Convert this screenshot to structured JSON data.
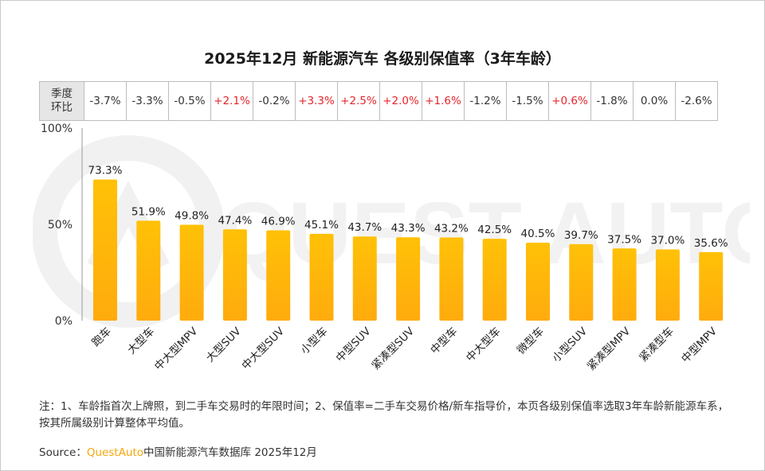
{
  "title": "2025年12月 新能源汽车 各级别保值率（3年车龄）",
  "watermark_text": "QUEST AUTO",
  "qoq": {
    "header_line1": "季度",
    "header_line2": "环比",
    "values": [
      "-3.7%",
      "-3.3%",
      "-0.5%",
      "+2.1%",
      "-0.2%",
      "+3.3%",
      "+2.5%",
      "+2.0%",
      "+1.6%",
      "-1.2%",
      "-1.5%",
      "+0.6%",
      "-1.8%",
      "0.0%",
      "-2.6%"
    ]
  },
  "chart_data": {
    "type": "bar",
    "title": "2025年12月 新能源汽车 各级别保值率（3年车龄）",
    "categories": [
      "跑车",
      "大型车",
      "中大型MPV",
      "大型SUV",
      "中大型SUV",
      "小型车",
      "中型SUV",
      "紧凑型SUV",
      "中型车",
      "中大型车",
      "微型车",
      "小型SUV",
      "紧凑型MPV",
      "紧凑型车",
      "中型MPV"
    ],
    "values": [
      73.3,
      51.9,
      49.8,
      47.4,
      46.9,
      45.1,
      43.7,
      43.3,
      43.2,
      42.5,
      40.5,
      39.7,
      37.5,
      37.0,
      35.6
    ],
    "data_labels": [
      "73.3%",
      "51.9%",
      "49.8%",
      "47.4%",
      "46.9%",
      "45.1%",
      "43.7%",
      "43.3%",
      "43.2%",
      "42.5%",
      "40.5%",
      "39.7%",
      "37.5%",
      "37.0%",
      "35.6%"
    ],
    "ylim": [
      0,
      100
    ],
    "yticks": [
      0,
      50,
      100
    ],
    "ytick_labels": [
      "0%",
      "50%",
      "100%"
    ],
    "xlabel": "",
    "ylabel": "",
    "grid": false,
    "bar_color_top": "#ffc107",
    "bar_color_bottom": "#ffab0d"
  },
  "note": "注：1、车龄指首次上牌照，到二手车交易时的年限时间；2、保值率=二手车交易价格/新车指导价，本页各级别保值率选取3年车龄新能源车系，按其所属级别计算整体平均值。",
  "source": {
    "label": "Source：",
    "brand": "QuestAuto",
    "text": "中国新能源汽车数据库 2025年12月"
  },
  "colors": {
    "positive": "#e4262b",
    "negative": "#333333",
    "brand": "#f5a70a",
    "axis": "#999999"
  }
}
